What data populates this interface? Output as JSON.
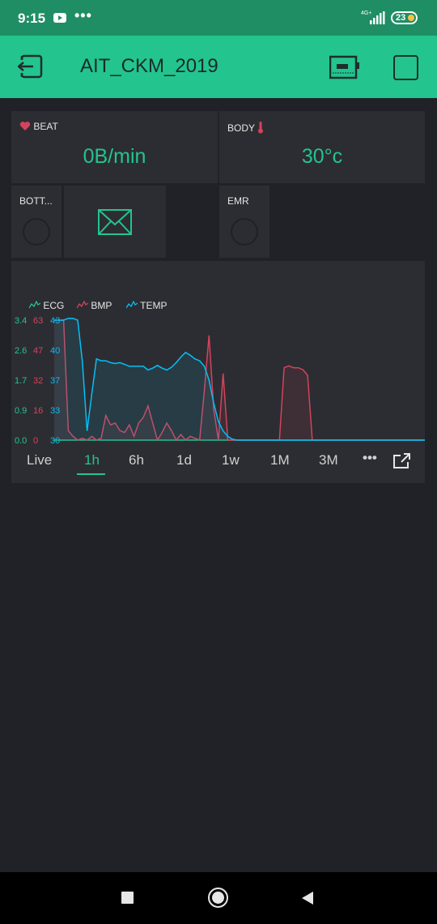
{
  "status_bar": {
    "time": "9:15",
    "notification_icon": "youtube-icon",
    "more_dots": "•••",
    "network": "4G+",
    "battery_level": "23"
  },
  "app_bar": {
    "title": "AIT_CKM_2019",
    "back_icon": "exit-icon",
    "device_icon": "device-icon",
    "square_icon": "square-icon"
  },
  "widgets": {
    "beat": {
      "label": "BEAT",
      "value": "0B/min",
      "icon": "heart-icon"
    },
    "body": {
      "label": "BODY",
      "value": "30°c",
      "icon": "thermometer-icon"
    },
    "bottle": {
      "label": "BOTT..."
    },
    "email": {
      "icon": "envelope-icon"
    },
    "emr": {
      "label": "EMR"
    }
  },
  "chart_data": {
    "type": "line",
    "legend": [
      "ECG",
      "BMP",
      "TEMP"
    ],
    "colors": {
      "ECG": "#23c48e",
      "BMP": "#d3435c",
      "TEMP": "#04c0f8"
    },
    "y_ticks": {
      "ECG": [
        "3.4",
        "2.6",
        "1.7",
        "0.9",
        "0.0"
      ],
      "BMP": [
        "63",
        "47",
        "32",
        "16",
        "0"
      ],
      "TEMP": [
        "43",
        "40",
        "37",
        "33",
        "30"
      ]
    },
    "ylim": {
      "ECG": [
        0,
        3.4
      ],
      "BMP": [
        0,
        63
      ],
      "TEMP": [
        30,
        43
      ]
    },
    "series": [
      {
        "name": "ECG",
        "values": [
          0,
          0,
          0,
          0,
          0,
          0,
          0,
          0,
          0,
          0,
          0,
          0,
          0,
          0,
          0,
          0,
          0,
          0,
          0,
          0,
          0,
          0,
          0,
          0,
          0,
          0,
          0,
          0,
          0,
          0,
          0,
          0,
          0,
          0,
          0,
          0,
          0,
          0,
          0,
          0,
          0,
          0,
          0,
          0,
          0,
          0,
          0,
          0,
          0,
          0,
          0,
          0,
          0,
          0,
          0,
          0,
          0,
          0,
          0,
          0,
          0,
          0,
          0,
          0,
          0,
          0,
          0,
          0,
          0,
          0,
          0,
          0,
          0,
          0,
          0,
          0,
          0,
          0,
          0,
          0
        ]
      },
      {
        "name": "BMP",
        "values": [
          63,
          63,
          63,
          5,
          2,
          0,
          1,
          0,
          2,
          0,
          1,
          13,
          8,
          9,
          5,
          4,
          8,
          2,
          9,
          12,
          18,
          9,
          0,
          4,
          9,
          5,
          0,
          3,
          0,
          2,
          1,
          0,
          26,
          55,
          16,
          0,
          35,
          0,
          0,
          0,
          0,
          0,
          0,
          0,
          0,
          0,
          0,
          0,
          0,
          38,
          39,
          38,
          38,
          37,
          34,
          0,
          0,
          0,
          0,
          0,
          0,
          0,
          0,
          0,
          0,
          0,
          0,
          0,
          0,
          0,
          0,
          0,
          0,
          0,
          0,
          0,
          0,
          0,
          0,
          0
        ]
      },
      {
        "name": "TEMP",
        "values": [
          43,
          43,
          43,
          43.2,
          43.2,
          43,
          38.5,
          31,
          35,
          38.8,
          38.6,
          38.6,
          38.4,
          38.3,
          38.4,
          38.2,
          38,
          38,
          38,
          38,
          37.6,
          37.8,
          38.1,
          37.8,
          37.6,
          37.9,
          38.4,
          39,
          39.5,
          39.2,
          38.8,
          38.6,
          38,
          36.5,
          34,
          32,
          31,
          30.4,
          30.1,
          30,
          30,
          30,
          30,
          30,
          30,
          30,
          30,
          30,
          30,
          30,
          30,
          30,
          30,
          30,
          30,
          30,
          30,
          30,
          30,
          30,
          30,
          30,
          30,
          30,
          30,
          30,
          30,
          30,
          30,
          30,
          30,
          30,
          30,
          30,
          30,
          30,
          30,
          30,
          30,
          30
        ]
      }
    ]
  },
  "periods": [
    "Live",
    "1h",
    "6h",
    "1d",
    "1w",
    "1M",
    "3M"
  ],
  "active_period": "1h",
  "chart_more": "•••",
  "nav": {
    "recents": "square-nav-icon",
    "home": "circle-nav-icon",
    "back": "triangle-nav-icon"
  }
}
